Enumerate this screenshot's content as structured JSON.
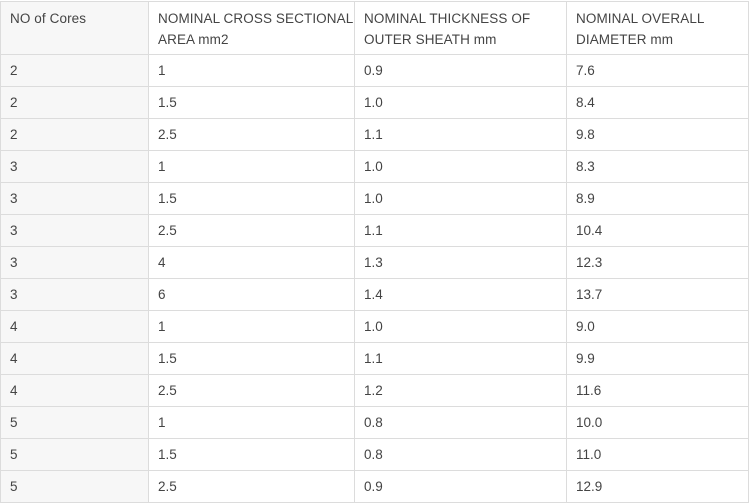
{
  "table": {
    "headers": [
      "NO of Cores",
      "NOMINAL CROSS SECTIONAL AREA mm2",
      "NOMINAL THICKNESS OF OUTER SHEATH mm",
      "NOMINAL OVERALL DIAMETER mm"
    ],
    "rows": [
      [
        "2",
        "1",
        "0.9",
        "7.6"
      ],
      [
        "2",
        "1.5",
        "1.0",
        "8.4"
      ],
      [
        "2",
        "2.5",
        "1.1",
        "9.8"
      ],
      [
        "3",
        "1",
        "1.0",
        "8.3"
      ],
      [
        "3",
        "1.5",
        "1.0",
        "8.9"
      ],
      [
        "3",
        "2.5",
        "1.1",
        "10.4"
      ],
      [
        "3",
        "4",
        "1.3",
        "12.3"
      ],
      [
        "3",
        "6",
        "1.4",
        "13.7"
      ],
      [
        "4",
        "1",
        "1.0",
        "9.0"
      ],
      [
        "4",
        "1.5",
        "1.1",
        "9.9"
      ],
      [
        "4",
        "2.5",
        "1.2",
        "11.6"
      ],
      [
        "5",
        "1",
        "0.8",
        "10.0"
      ],
      [
        "5",
        "1.5",
        "0.8",
        "11.0"
      ],
      [
        "5",
        "2.5",
        "0.9",
        "12.9"
      ]
    ]
  }
}
